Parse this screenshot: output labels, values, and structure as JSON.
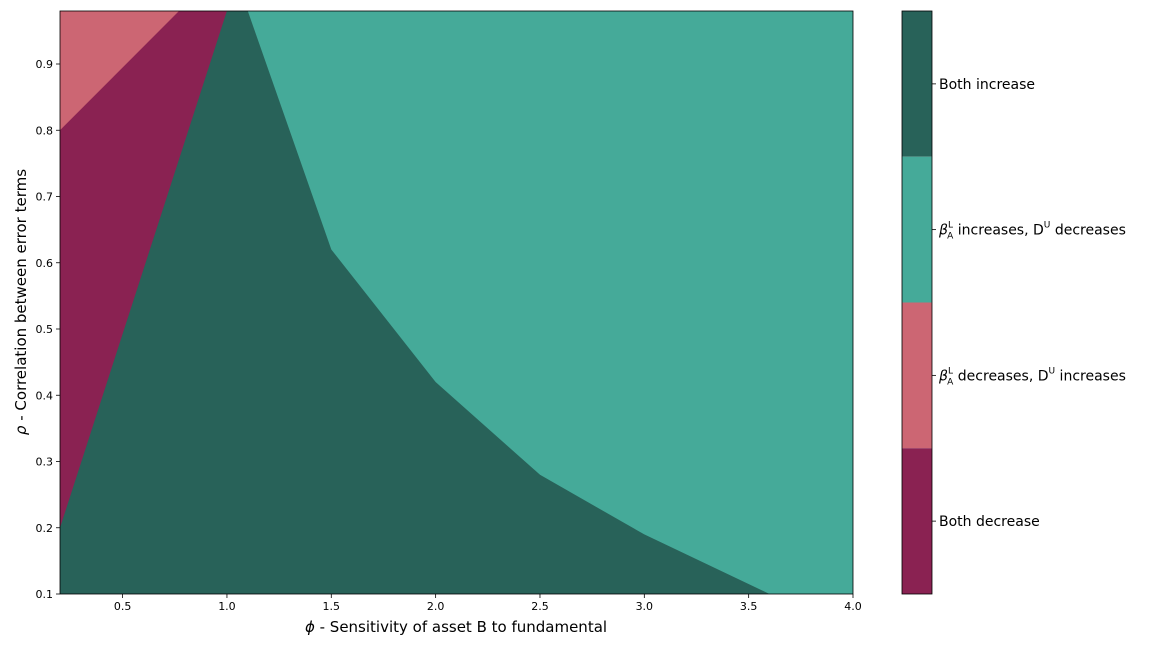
{
  "chart_data": {
    "type": "heatmap",
    "title": "",
    "xlabel_sym": "ϕ",
    "xlabel": " - Sensitivity of asset B to fundamental",
    "ylabel_sym": "ρ",
    "ylabel": " - Correlation between error terms",
    "xlim": [
      0.2,
      4.0
    ],
    "ylim": [
      0.1,
      0.98
    ],
    "xticks": [
      "0.5",
      "1.0",
      "1.5",
      "2.0",
      "2.5",
      "3.0",
      "3.5",
      "4.0"
    ],
    "yticks": [
      "0.1",
      "0.2",
      "0.3",
      "0.4",
      "0.5",
      "0.6",
      "0.7",
      "0.8",
      "0.9"
    ],
    "regions": [
      {
        "name": "Both decrease",
        "color": "#8a2252"
      },
      {
        "name": "β_A^L decreases, D^U increases",
        "color": "#cc6673"
      },
      {
        "name": "β_A^L increases, D^U decreases",
        "color": "#45aa99"
      },
      {
        "name": "Both increase",
        "color": "#286259"
      }
    ],
    "colorbar_labels": [
      {
        "pre": "Both increase",
        "sub_sym": "",
        "mid": "",
        "sup": "",
        "post": ""
      },
      {
        "pre": "",
        "sub_sym": "β",
        "mid": " increases, D",
        "sup": "U",
        "post": " decreases"
      },
      {
        "pre": "",
        "sub_sym": "β",
        "mid": " decreases, D",
        "sup": "U",
        "post": " increases"
      },
      {
        "pre": "Both decrease",
        "sub_sym": "",
        "mid": "",
        "sup": "",
        "post": ""
      }
    ],
    "beta_sup": "L",
    "beta_sub": "A",
    "boundaries": {
      "left_line": [
        [
          0.2,
          0.2
        ],
        [
          1.0,
          0.98
        ]
      ],
      "pink_line": [
        [
          0.2,
          0.8
        ],
        [
          0.77,
          0.98
        ]
      ],
      "right_curve_points": [
        [
          1.1,
          0.98
        ],
        [
          1.5,
          0.62
        ],
        [
          2.0,
          0.42
        ],
        [
          2.5,
          0.28
        ],
        [
          3.0,
          0.19
        ],
        [
          3.6,
          0.1
        ]
      ]
    }
  }
}
